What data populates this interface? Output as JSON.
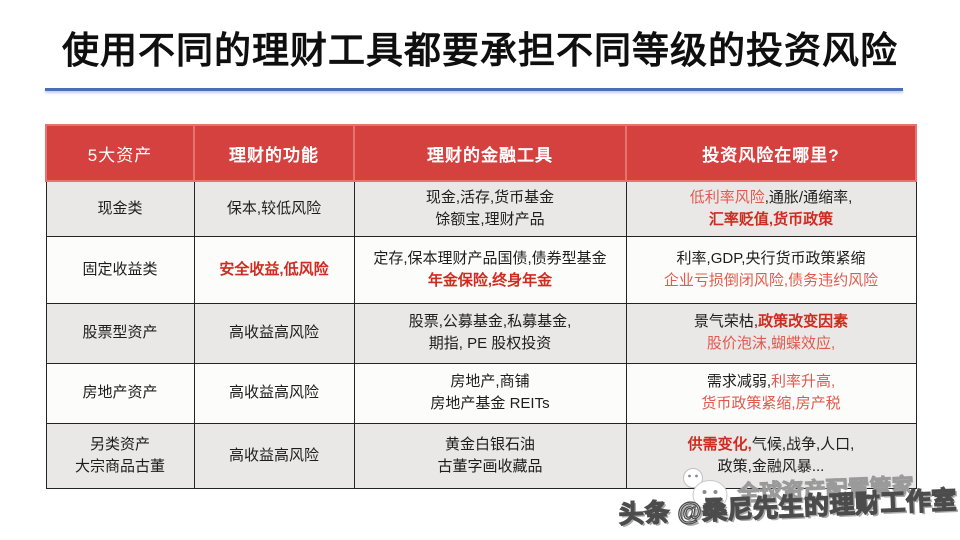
{
  "page": {
    "title": "使用不同的理财工具都要承担不同等级的投资风险"
  },
  "colors": {
    "header_bg": "#d5413e",
    "header_text": "#ffffff",
    "header_border": "#e5736f",
    "row_odd_bg": "#e9e8e7",
    "row_even_bg": "#fcfcfb",
    "border": "#242424",
    "black": "#1d1d1d",
    "red": "#e05a4e",
    "red_strong": "#d02b20",
    "divider_blue": "#4a6fb5"
  },
  "table": {
    "headers": [
      {
        "label": "5大资产",
        "bold": false
      },
      {
        "label": "理财的功能",
        "bold": true
      },
      {
        "label": "理财的金融工具",
        "bold": true
      },
      {
        "label": "投资风险在哪里?",
        "bold": true
      }
    ],
    "rows": [
      {
        "asset": [
          [
            {
              "t": "现金类",
              "s": "k"
            }
          ]
        ],
        "function": [
          [
            {
              "t": "保本,较低风险",
              "s": "k"
            }
          ]
        ],
        "tools": [
          [
            {
              "t": "现金,活存,货币基金",
              "s": "k"
            }
          ],
          [
            {
              "t": "馀额宝,理财产品",
              "s": "k"
            }
          ]
        ],
        "risks": [
          [
            {
              "t": "低利率风险",
              "s": "r"
            },
            {
              "t": ",通胀/通缩率,",
              "s": "k"
            }
          ],
          [
            {
              "t": "汇率贬值,货币政策",
              "s": "R"
            }
          ]
        ]
      },
      {
        "asset": [
          [
            {
              "t": "固定收益类",
              "s": "k"
            }
          ]
        ],
        "function": [
          [
            {
              "t": "安全收益,低风险",
              "s": "R"
            }
          ]
        ],
        "tools": [
          [
            {
              "t": "定存,保本理财产品国债,债券型基金",
              "s": "k"
            }
          ],
          [
            {
              "t": "年金保险,终身年金",
              "s": "R"
            }
          ]
        ],
        "risks": [
          [
            {
              "t": "利率,GDP,央行货币政策紧缩",
              "s": "k"
            }
          ],
          [
            {
              "t": "企业亏损倒闭风险,债务违约风险",
              "s": "r"
            }
          ]
        ]
      },
      {
        "asset": [
          [
            {
              "t": "股票型资产",
              "s": "k"
            }
          ]
        ],
        "function": [
          [
            {
              "t": "高收益高风险",
              "s": "k"
            }
          ]
        ],
        "tools": [
          [
            {
              "t": "股票,公募基金,私募基金,",
              "s": "k"
            }
          ],
          [
            {
              "t": "期指, PE 股权投资",
              "s": "k"
            }
          ]
        ],
        "risks": [
          [
            {
              "t": "景气荣枯,",
              "s": "k"
            },
            {
              "t": "政策改变因素",
              "s": "R"
            }
          ],
          [
            {
              "t": "股价泡沫,蝴蝶效应,",
              "s": "r"
            }
          ]
        ]
      },
      {
        "asset": [
          [
            {
              "t": "房地产资产",
              "s": "k"
            }
          ]
        ],
        "function": [
          [
            {
              "t": "高收益高风险",
              "s": "k"
            }
          ]
        ],
        "tools": [
          [
            {
              "t": "房地产,商铺",
              "s": "k"
            }
          ],
          [
            {
              "t": "房地产基金 REITs",
              "s": "k"
            }
          ]
        ],
        "risks": [
          [
            {
              "t": "需求减弱,",
              "s": "k"
            },
            {
              "t": "利率升高,",
              "s": "r"
            }
          ],
          [
            {
              "t": "货币政策紧缩,房产税",
              "s": "r"
            }
          ]
        ]
      },
      {
        "asset": [
          [
            {
              "t": "另类资产",
              "s": "k"
            }
          ],
          [
            {
              "t": "大宗商品古董",
              "s": "k"
            }
          ]
        ],
        "function": [
          [
            {
              "t": "高收益高风险",
              "s": "k"
            }
          ]
        ],
        "tools": [
          [
            {
              "t": "黄金白银石油",
              "s": "k"
            }
          ],
          [
            {
              "t": "古董字画收藏品",
              "s": "k"
            }
          ]
        ],
        "risks": [
          [
            {
              "t": "供需变化,",
              "s": "R"
            },
            {
              "t": "气候,战争,人口,",
              "s": "k"
            }
          ],
          [
            {
              "t": "政策,金融风暴...",
              "s": "k"
            }
          ]
        ]
      }
    ]
  },
  "watermark": {
    "small_text": "全球资产配置管家",
    "big_text": "头条 @桑尼先生的理财工作室",
    "icon": "ghost-icon"
  }
}
